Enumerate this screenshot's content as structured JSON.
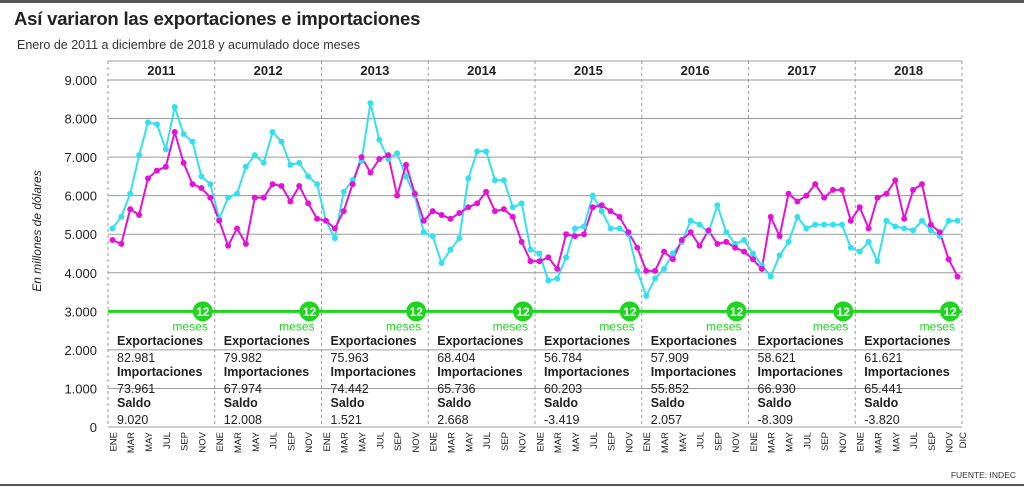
{
  "title": "Así variaron las exportaciones e importaciones",
  "subtitle": "Enero de 2011 a diciembre de 2018 y acumulado doce meses",
  "source": "FUENTE: INDEC",
  "chart_data": {
    "type": "line",
    "ylabel": "En millones de dólares",
    "ylim": [
      0,
      9000
    ],
    "yticks": [
      "0",
      "1.000",
      "2.000",
      "3.000",
      "4.000",
      "5.000",
      "6.000",
      "7.000",
      "8.000",
      "9.000"
    ],
    "month_labels": [
      "ENE",
      "MAR",
      "MAY",
      "JUL",
      "SEP",
      "NOV"
    ],
    "last_label": "DIC",
    "years": [
      "2011",
      "2012",
      "2013",
      "2014",
      "2015",
      "2016",
      "2017",
      "2018"
    ],
    "series": [
      {
        "name": "Exportaciones",
        "color": "#33e0ec",
        "values": [
          5150,
          5450,
          6050,
          7050,
          7900,
          7850,
          7200,
          8300,
          7600,
          7400,
          6500,
          6300,
          5400,
          5950,
          6050,
          6750,
          7050,
          6850,
          7650,
          7400,
          6800,
          6850,
          6500,
          6300,
          5350,
          4900,
          6100,
          6400,
          6900,
          8400,
          7450,
          6950,
          7100,
          6500,
          6000,
          5050,
          4950,
          4250,
          4600,
          4900,
          6450,
          7150,
          7150,
          6400,
          6400,
          5700,
          5800,
          4600,
          4500,
          3800,
          3850,
          4400,
          5150,
          5200,
          6000,
          5600,
          5150,
          5150,
          5000,
          4050,
          3400,
          3850,
          4100,
          4500,
          4800,
          5350,
          5250,
          5050,
          5750,
          5050,
          4750,
          4850,
          4500,
          4200,
          3900,
          4450,
          4800,
          5450,
          5150,
          5250,
          5250,
          5250,
          5250,
          4650,
          4550,
          4800,
          4300,
          5350,
          5200,
          5150,
          5100,
          5350,
          5100,
          4950,
          5350,
          5350
        ]
      },
      {
        "name": "Importaciones",
        "color": "#e312d6",
        "values": [
          4850,
          4750,
          5650,
          5500,
          6450,
          6650,
          6750,
          7650,
          6850,
          6300,
          6200,
          5950,
          5350,
          4700,
          5150,
          4750,
          5950,
          5950,
          6300,
          6250,
          5850,
          6250,
          5800,
          5400,
          5350,
          5150,
          5600,
          6300,
          7000,
          6600,
          6950,
          7050,
          6000,
          6800,
          6050,
          5350,
          5600,
          5500,
          5400,
          5550,
          5700,
          5800,
          6100,
          5600,
          5650,
          5450,
          4800,
          4300,
          4300,
          4400,
          4100,
          5000,
          4950,
          5000,
          5700,
          5750,
          5600,
          5450,
          5050,
          4650,
          4050,
          4050,
          4550,
          4350,
          4850,
          5050,
          4700,
          5100,
          4750,
          4800,
          4650,
          4550,
          4350,
          4100,
          5450,
          4950,
          6050,
          5850,
          6000,
          6300,
          5950,
          6150,
          6150,
          5350,
          5700,
          5150,
          5950,
          6050,
          6400,
          5400,
          6150,
          6300,
          5250,
          5050,
          4350,
          3900
        ]
      }
    ],
    "annual_line": {
      "value": 3000,
      "color": "#1ed41e",
      "badge": "12",
      "badge_label": "meses"
    },
    "annual": [
      {
        "year": "2011",
        "exp": "82.981",
        "imp": "73.961",
        "saldo": "9.020"
      },
      {
        "year": "2012",
        "exp": "79.982",
        "imp": "67.974",
        "saldo": "12.008"
      },
      {
        "year": "2013",
        "exp": "75.963",
        "imp": "74.442",
        "saldo": "1.521"
      },
      {
        "year": "2014",
        "exp": "68.404",
        "imp": "65.736",
        "saldo": "2.668"
      },
      {
        "year": "2015",
        "exp": "56.784",
        "imp": "60.203",
        "saldo": "-3.419"
      },
      {
        "year": "2016",
        "exp": "57.909",
        "imp": "55.852",
        "saldo": "2.057"
      },
      {
        "year": "2017",
        "exp": "58.621",
        "imp": "66.930",
        "saldo": "-8.309"
      },
      {
        "year": "2018",
        "exp": "61.621",
        "imp": "65.441",
        "saldo": "-3.820"
      }
    ],
    "stat_labels": {
      "exp": "Exportaciones",
      "imp": "Importaciones",
      "saldo": "Saldo"
    }
  }
}
